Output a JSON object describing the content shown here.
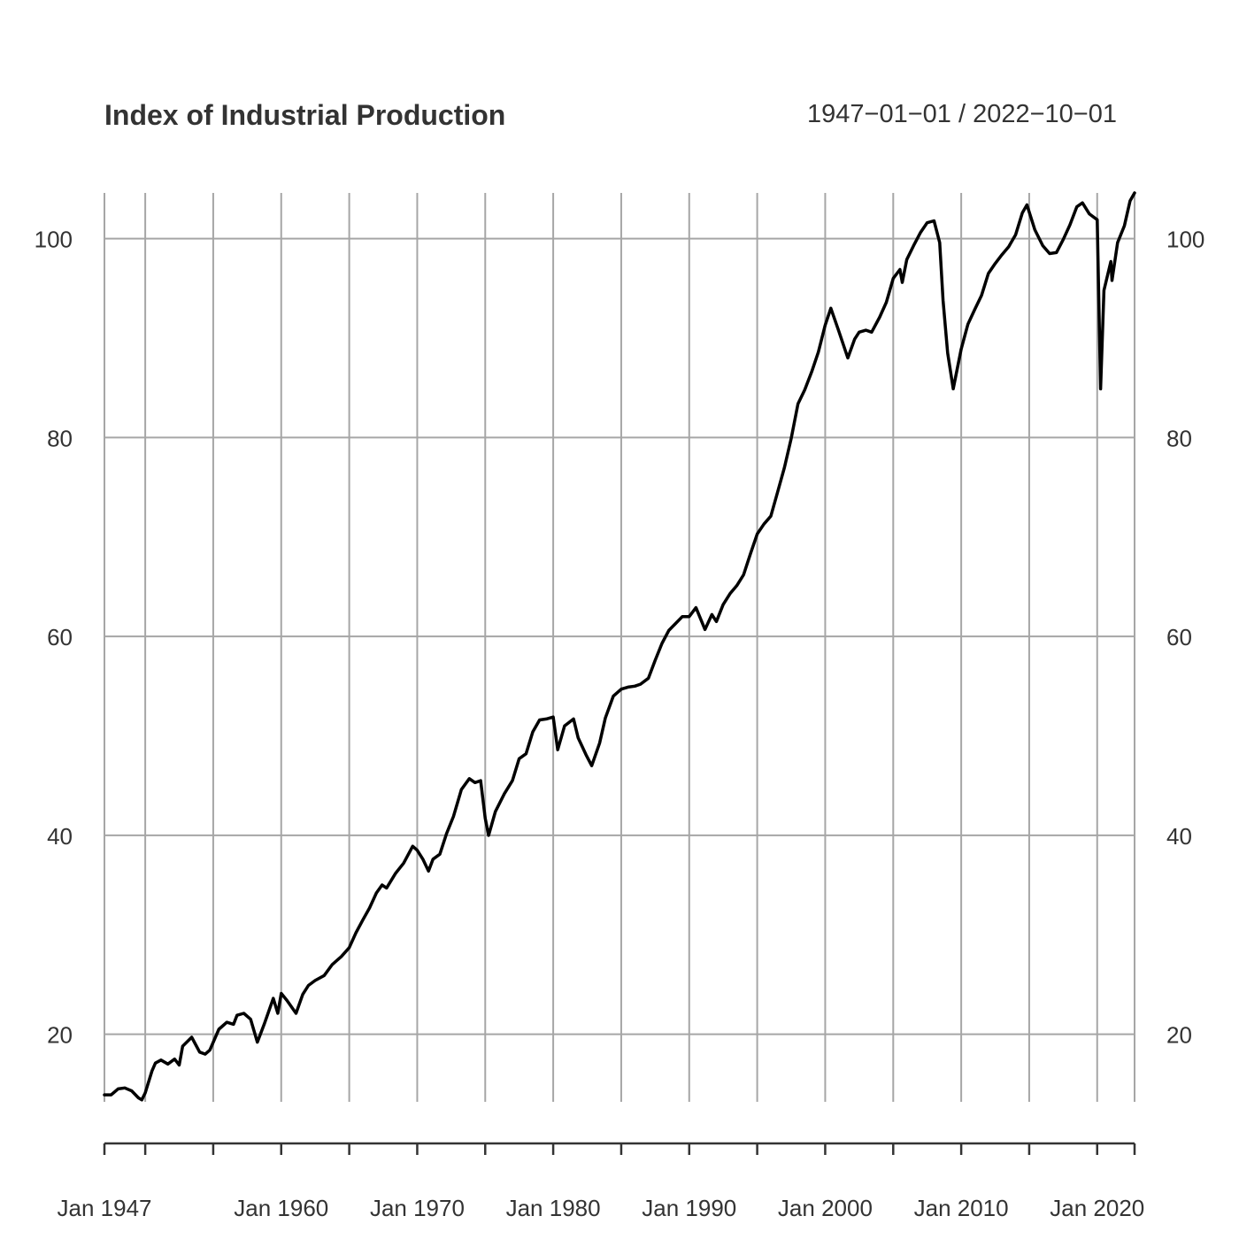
{
  "chart_data": {
    "type": "line",
    "title": "Index of Industrial Production",
    "subtitle": "1947−01−01 / 2022−10−01",
    "xlabel": "",
    "ylabel": "",
    "grid": true,
    "legend": "none",
    "colors": {
      "line": "#000000",
      "grid": "#a6a6a6",
      "text": "#333333",
      "axis": "#333333"
    },
    "xlim": [
      "1947-01-01",
      "2022-10-01"
    ],
    "ylim": [
      13.2,
      104.6
    ],
    "y_ticks": [
      20,
      40,
      60,
      80,
      100
    ],
    "y_tick_labels": [
      "20",
      "40",
      "60",
      "80",
      "100"
    ],
    "x_gridlines": [
      "1950-01-01",
      "1955-01-01",
      "1960-01-01",
      "1965-01-01",
      "1970-01-01",
      "1975-01-01",
      "1980-01-01",
      "1985-01-01",
      "1990-01-01",
      "1995-01-01",
      "2000-01-01",
      "2005-01-01",
      "2010-01-01",
      "2015-01-01",
      "2020-01-01"
    ],
    "x_axis_ticks": [
      "1947-01-01",
      "1950-01-01",
      "1955-01-01",
      "1960-01-01",
      "1965-01-01",
      "1970-01-01",
      "1975-01-01",
      "1980-01-01",
      "1985-01-01",
      "1990-01-01",
      "1995-01-01",
      "2000-01-01",
      "2005-01-01",
      "2010-01-01",
      "2015-01-01",
      "2020-01-01",
      "2022-10-01"
    ],
    "x_labels": [
      {
        "date": "1947-01-01",
        "label": "Jan 1947"
      },
      {
        "date": "1960-01-01",
        "label": "Jan 1960"
      },
      {
        "date": "1970-01-01",
        "label": "Jan 1970"
      },
      {
        "date": "1980-01-01",
        "label": "Jan 1980"
      },
      {
        "date": "1990-01-01",
        "label": "Jan 1990"
      },
      {
        "date": "2000-01-01",
        "label": "Jan 2000"
      },
      {
        "date": "2010-01-01",
        "label": "Jan 2010"
      },
      {
        "date": "2020-01-01",
        "label": "Jan 2020"
      }
    ],
    "series": [
      {
        "values": [
          [
            "1947-01-01",
            13.9
          ],
          [
            "1947-07-01",
            13.9
          ],
          [
            "1948-01-01",
            14.5
          ],
          [
            "1948-07-01",
            14.6
          ],
          [
            "1949-01-01",
            14.3
          ],
          [
            "1949-07-01",
            13.6
          ],
          [
            "1949-10-01",
            13.4
          ],
          [
            "1950-01-01",
            14.1
          ],
          [
            "1950-07-01",
            16.3
          ],
          [
            "1950-10-01",
            17.1
          ],
          [
            "1951-03-01",
            17.4
          ],
          [
            "1951-09-01",
            17.0
          ],
          [
            "1952-03-01",
            17.5
          ],
          [
            "1952-07-01",
            16.9
          ],
          [
            "1952-10-01",
            18.8
          ],
          [
            "1953-06-01",
            19.7
          ],
          [
            "1954-01-01",
            18.2
          ],
          [
            "1954-06-01",
            18.0
          ],
          [
            "1954-10-01",
            18.4
          ],
          [
            "1955-06-01",
            20.5
          ],
          [
            "1956-01-01",
            21.2
          ],
          [
            "1956-07-01",
            21.0
          ],
          [
            "1956-10-01",
            21.9
          ],
          [
            "1957-04-01",
            22.1
          ],
          [
            "1957-10-01",
            21.5
          ],
          [
            "1958-04-01",
            19.2
          ],
          [
            "1958-10-01",
            21.0
          ],
          [
            "1959-06-01",
            23.6
          ],
          [
            "1959-10-01",
            22.1
          ],
          [
            "1960-01-01",
            24.1
          ],
          [
            "1960-06-01",
            23.4
          ],
          [
            "1961-02-01",
            22.1
          ],
          [
            "1961-08-01",
            24.0
          ],
          [
            "1962-01-01",
            24.9
          ],
          [
            "1962-07-01",
            25.4
          ],
          [
            "1963-03-01",
            25.9
          ],
          [
            "1963-10-01",
            27.0
          ],
          [
            "1964-06-01",
            27.8
          ],
          [
            "1965-01-01",
            28.7
          ],
          [
            "1965-07-01",
            30.2
          ],
          [
            "1966-01-01",
            31.5
          ],
          [
            "1966-07-01",
            32.7
          ],
          [
            "1967-01-01",
            34.2
          ],
          [
            "1967-06-01",
            35.0
          ],
          [
            "1967-10-01",
            34.7
          ],
          [
            "1968-06-01",
            36.2
          ],
          [
            "1969-01-01",
            37.2
          ],
          [
            "1969-09-01",
            38.9
          ],
          [
            "1970-01-01",
            38.5
          ],
          [
            "1970-06-01",
            37.6
          ],
          [
            "1970-11-01",
            36.4
          ],
          [
            "1971-03-01",
            37.6
          ],
          [
            "1971-09-01",
            38.1
          ],
          [
            "1972-03-01",
            40.2
          ],
          [
            "1972-09-01",
            41.9
          ],
          [
            "1973-04-01",
            44.6
          ],
          [
            "1973-11-01",
            45.7
          ],
          [
            "1974-04-01",
            45.3
          ],
          [
            "1974-09-01",
            45.5
          ],
          [
            "1975-01-01",
            41.7
          ],
          [
            "1975-04-01",
            40.0
          ],
          [
            "1975-10-01",
            42.4
          ],
          [
            "1976-06-01",
            44.2
          ],
          [
            "1977-01-01",
            45.5
          ],
          [
            "1977-07-01",
            47.7
          ],
          [
            "1978-01-01",
            48.2
          ],
          [
            "1978-07-01",
            50.4
          ],
          [
            "1979-01-01",
            51.6
          ],
          [
            "1979-07-01",
            51.7
          ],
          [
            "1980-01-01",
            51.9
          ],
          [
            "1980-05-01",
            48.6
          ],
          [
            "1980-11-01",
            51.0
          ],
          [
            "1981-07-01",
            51.7
          ],
          [
            "1981-11-01",
            49.8
          ],
          [
            "1982-06-01",
            48.1
          ],
          [
            "1982-11-01",
            47.0
          ],
          [
            "1983-06-01",
            49.3
          ],
          [
            "1983-11-01",
            51.8
          ],
          [
            "1984-06-01",
            54.0
          ],
          [
            "1985-01-01",
            54.7
          ],
          [
            "1985-07-01",
            54.9
          ],
          [
            "1986-01-01",
            55.0
          ],
          [
            "1986-06-01",
            55.2
          ],
          [
            "1987-01-01",
            55.8
          ],
          [
            "1987-07-01",
            57.6
          ],
          [
            "1988-01-01",
            59.3
          ],
          [
            "1988-07-01",
            60.6
          ],
          [
            "1989-01-01",
            61.3
          ],
          [
            "1989-07-01",
            62.0
          ],
          [
            "1990-01-01",
            62.0
          ],
          [
            "1990-07-01",
            62.9
          ],
          [
            "1991-03-01",
            60.7
          ],
          [
            "1991-09-01",
            62.2
          ],
          [
            "1992-01-01",
            61.5
          ],
          [
            "1992-07-01",
            63.2
          ],
          [
            "1993-01-01",
            64.3
          ],
          [
            "1993-07-01",
            65.1
          ],
          [
            "1994-01-01",
            66.2
          ],
          [
            "1994-07-01",
            68.3
          ],
          [
            "1995-01-01",
            70.3
          ],
          [
            "1995-07-01",
            71.3
          ],
          [
            "1996-01-01",
            72.1
          ],
          [
            "1996-07-01",
            74.5
          ],
          [
            "1997-01-01",
            77.0
          ],
          [
            "1997-07-01",
            79.9
          ],
          [
            "1998-01-01",
            83.4
          ],
          [
            "1998-07-01",
            84.8
          ],
          [
            "1999-01-01",
            86.6
          ],
          [
            "1999-07-01",
            88.6
          ],
          [
            "2000-01-01",
            91.3
          ],
          [
            "2000-06-01",
            93.0
          ],
          [
            "2001-01-01",
            90.7
          ],
          [
            "2001-09-01",
            88.0
          ],
          [
            "2002-03-01",
            89.9
          ],
          [
            "2002-07-01",
            90.6
          ],
          [
            "2003-01-01",
            90.8
          ],
          [
            "2003-06-01",
            90.6
          ],
          [
            "2004-01-01",
            92.1
          ],
          [
            "2004-07-01",
            93.6
          ],
          [
            "2005-01-01",
            96.0
          ],
          [
            "2005-07-01",
            96.9
          ],
          [
            "2005-09-01",
            95.6
          ],
          [
            "2006-01-01",
            97.9
          ],
          [
            "2006-07-01",
            99.3
          ],
          [
            "2007-01-01",
            100.6
          ],
          [
            "2007-07-01",
            101.6
          ],
          [
            "2008-01-01",
            101.8
          ],
          [
            "2008-06-01",
            99.6
          ],
          [
            "2008-09-01",
            93.8
          ],
          [
            "2009-01-01",
            88.5
          ],
          [
            "2009-06-01",
            84.9
          ],
          [
            "2010-01-01",
            88.9
          ],
          [
            "2010-07-01",
            91.4
          ],
          [
            "2011-01-01",
            92.9
          ],
          [
            "2011-07-01",
            94.3
          ],
          [
            "2012-01-01",
            96.5
          ],
          [
            "2012-07-01",
            97.5
          ],
          [
            "2013-01-01",
            98.4
          ],
          [
            "2013-07-01",
            99.2
          ],
          [
            "2014-01-01",
            100.4
          ],
          [
            "2014-07-01",
            102.6
          ],
          [
            "2014-11-01",
            103.4
          ],
          [
            "2015-06-01",
            100.9
          ],
          [
            "2016-01-01",
            99.3
          ],
          [
            "2016-07-01",
            98.5
          ],
          [
            "2017-01-01",
            98.6
          ],
          [
            "2017-07-01",
            99.9
          ],
          [
            "2018-01-01",
            101.4
          ],
          [
            "2018-07-01",
            103.2
          ],
          [
            "2018-12-01",
            103.6
          ],
          [
            "2019-06-01",
            102.5
          ],
          [
            "2020-01-01",
            101.9
          ],
          [
            "2020-04-01",
            84.9
          ],
          [
            "2020-07-01",
            94.8
          ],
          [
            "2021-01-01",
            97.7
          ],
          [
            "2021-02-01",
            95.8
          ],
          [
            "2021-07-01",
            99.6
          ],
          [
            "2022-01-01",
            101.3
          ],
          [
            "2022-06-01",
            103.8
          ],
          [
            "2022-10-01",
            104.6
          ]
        ]
      }
    ]
  }
}
